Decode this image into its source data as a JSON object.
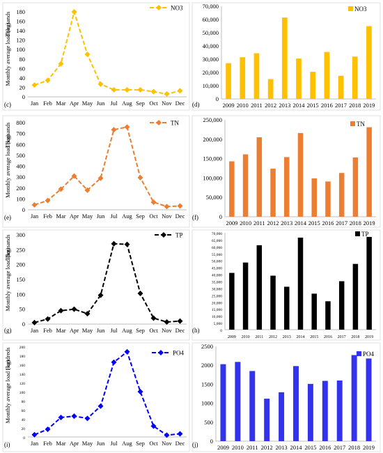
{
  "chart_data": [
    {
      "type": "line",
      "panel_label": "(c)",
      "ylabel": "Monthly average load (kg)",
      "unit_label": "Thousands",
      "series": [
        {
          "name": "NO3",
          "color": "#FFC000",
          "values": [
            25,
            35,
            70,
            180,
            90,
            27,
            15,
            15,
            15,
            11,
            6,
            13
          ]
        }
      ],
      "categories": [
        "Jan",
        "Feb",
        "Mar",
        "Apr",
        "May",
        "Jun",
        "Jul",
        "Aug",
        "Sep",
        "Oct",
        "Nov",
        "Dec"
      ],
      "ylim": [
        0,
        180
      ],
      "yticks": [
        "0",
        "20",
        "40",
        "60",
        "80",
        "100",
        "120",
        "140",
        "160",
        "180"
      ],
      "legend": "top-right"
    },
    {
      "type": "bar",
      "panel_label": "(d)",
      "series": [
        {
          "name": "NO3",
          "color": "#FFC000",
          "values": [
            27000,
            31500,
            34500,
            15000,
            61500,
            30500,
            20500,
            35500,
            17500,
            32000,
            55000
          ]
        }
      ],
      "categories": [
        "2009",
        "2010",
        "2011",
        "2012",
        "2013",
        "2014",
        "2015",
        "2016",
        "2017",
        "2018",
        "2019"
      ],
      "ylim": [
        0,
        70000
      ],
      "yticks": [
        "0",
        "10,000",
        "20,000",
        "30,000",
        "40,000",
        "50,000",
        "60,000",
        "70,000"
      ],
      "legend": "top-right"
    },
    {
      "type": "line",
      "panel_label": "(e)",
      "ylabel": "Monthly average load (kg)",
      "unit_label": "Thousands",
      "series": [
        {
          "name": "TN",
          "color": "#ED7D31",
          "values": [
            45,
            85,
            190,
            310,
            180,
            290,
            735,
            760,
            295,
            70,
            30,
            35
          ]
        }
      ],
      "categories": [
        "Jan",
        "Feb",
        "Mar",
        "Apr",
        "May",
        "Jun",
        "Jul",
        "Aug",
        "Sep",
        "Oct",
        "Nov",
        "Dec"
      ],
      "ylim": [
        0,
        800
      ],
      "yticks": [
        "0",
        "100",
        "200",
        "300",
        "400",
        "500",
        "600",
        "700",
        "800"
      ],
      "legend": "top-right"
    },
    {
      "type": "bar",
      "panel_label": "(f)",
      "series": [
        {
          "name": "TN",
          "color": "#ED7D31",
          "values": [
            143000,
            161000,
            205000,
            124000,
            154000,
            216000,
            99000,
            91000,
            113000,
            153000,
            231000
          ]
        }
      ],
      "categories": [
        "2009",
        "2010",
        "2011",
        "2012",
        "2013",
        "2014",
        "2015",
        "2016",
        "2017",
        "2018",
        "2019"
      ],
      "ylim": [
        0,
        250000
      ],
      "yticks": [
        "0",
        "50,000",
        "100,000",
        "150,000",
        "200,000",
        "250,000"
      ],
      "legend": "top-right"
    },
    {
      "type": "line",
      "panel_label": "(g)",
      "ylabel": "Monthly average load (kg)",
      "unit_label": "Thousands",
      "series": [
        {
          "name": "TP",
          "color": "#000000",
          "values": [
            5,
            17,
            45,
            50,
            35,
            97,
            270,
            268,
            103,
            20,
            7,
            10
          ]
        }
      ],
      "categories": [
        "Jan",
        "Feb",
        "Mar",
        "Apr",
        "May",
        "Jun",
        "Jul",
        "Aug",
        "Sep",
        "Oct",
        "Nov",
        "Dec"
      ],
      "ylim": [
        0,
        300
      ],
      "yticks": [
        "0",
        "50",
        "100",
        "150",
        "200",
        "250",
        "300"
      ],
      "legend": "top-right"
    },
    {
      "type": "bar",
      "panel_label": "(h)",
      "series": [
        {
          "name": "TP",
          "color": "#000000",
          "values": [
            41000,
            48500,
            61000,
            39000,
            31000,
            66500,
            26000,
            20500,
            35000,
            47500,
            67000
          ]
        }
      ],
      "categories": [
        "2009",
        "2010",
        "2011",
        "2012",
        "2013",
        "2014",
        "2015",
        "2016",
        "2017",
        "2018",
        "2019"
      ],
      "ylim": [
        0,
        70000
      ],
      "yticks": [
        "0",
        "5,000",
        "10,000",
        "15,000",
        "20,000",
        "25,000",
        "30,000",
        "35,000",
        "40,000",
        "45,000",
        "50,000",
        "55,000",
        "60,000",
        "65,000",
        "70,000"
      ],
      "legend": "top-right"
    },
    {
      "type": "line",
      "panel_label": "(i)",
      "ylabel": "Monthly average load (kg)",
      "unit_label": "Hundreds",
      "series": [
        {
          "name": "PO4",
          "color": "#0000FF",
          "values": [
            5,
            17,
            43,
            46,
            41,
            68,
            165,
            188,
            100,
            24,
            4,
            7
          ]
        }
      ],
      "categories": [
        "Jan",
        "Feb",
        "Mar",
        "Apr",
        "May",
        "Jun",
        "Jul",
        "Aug",
        "Sep",
        "Oct",
        "Nov",
        "Dec"
      ],
      "ylim": [
        0,
        200
      ],
      "yticks": [
        "0",
        "20",
        "40",
        "60",
        "80",
        "100",
        "120",
        "140",
        "160",
        "180",
        "200"
      ],
      "legend": "top-right"
    },
    {
      "type": "bar",
      "panel_label": "(j)",
      "series": [
        {
          "name": "PO4",
          "color": "#3333EE",
          "values": [
            2030,
            2090,
            1850,
            1120,
            1290,
            1980,
            1510,
            1590,
            1600,
            2270,
            2180
          ]
        }
      ],
      "categories": [
        "2009",
        "2010",
        "2011",
        "2012",
        "2013",
        "2014",
        "2015",
        "2016",
        "2017",
        "2018",
        "2019"
      ],
      "ylim": [
        0,
        2500
      ],
      "yticks": [
        "0",
        "500",
        "1000",
        "1500",
        "2000",
        "2500"
      ],
      "legend": "top-right"
    }
  ]
}
